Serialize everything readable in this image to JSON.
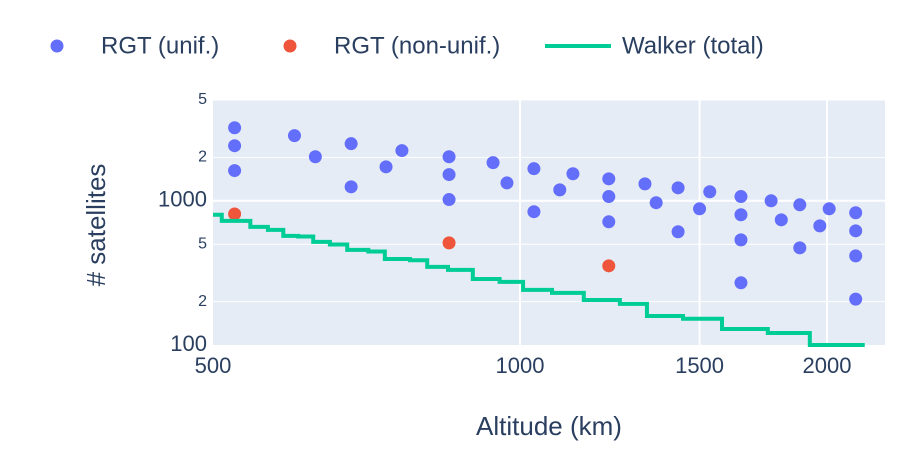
{
  "chart_data": {
    "type": "scatter",
    "xlabel": "Altitude (km)",
    "ylabel": "# satellites",
    "xscale": "log",
    "yscale": "log",
    "grid": true,
    "legend": "top",
    "xlim": [
      500,
      2280
    ],
    "ylim": [
      100,
      5000
    ],
    "xticks": [
      500,
      1000,
      1500,
      2000
    ],
    "yticks": [
      100,
      {
        "value": 200,
        "label": "2"
      },
      {
        "value": 500,
        "label": "5"
      },
      1000,
      {
        "value": 2000,
        "label": "2"
      },
      {
        "value": 5000,
        "label": "5"
      }
    ],
    "series": [
      {
        "name": "RGT (unif.)",
        "color": "#636efa",
        "mode": "markers",
        "x": [
          525,
          525,
          525,
          601,
          630,
          683,
          683,
          739,
          766,
          852,
          852,
          852,
          941,
          971,
          1032,
          1032,
          1094,
          1127,
          1222,
          1222,
          1222,
          1326,
          1360,
          1429,
          1429,
          1500,
          1535,
          1647,
          1647,
          1647,
          1647,
          1763,
          1804,
          1881,
          1881,
          1968,
          2010,
          2134,
          2134,
          2134,
          2134
        ],
        "values": [
          3210,
          2410,
          1620,
          2830,
          2020,
          2490,
          1250,
          1720,
          2230,
          2020,
          1520,
          1020,
          1840,
          1330,
          1670,
          840,
          1190,
          1540,
          1420,
          1070,
          715,
          1310,
          970,
          1230,
          610,
          880,
          1155,
          1070,
          800,
          536,
          270,
          1000,
          738,
          938,
          472,
          670,
          880,
          826,
          619,
          415,
          208
        ]
      },
      {
        "name": "RGT (non-unif.)",
        "color": "#ef553b",
        "mode": "markers",
        "x": [
          525,
          852,
          1222
        ],
        "values": [
          810,
          511,
          354
        ]
      },
      {
        "name": "Walker (total)",
        "color": "#00cc96",
        "mode": "lines",
        "line_shape": "hv",
        "x": [
          500,
          510,
          544,
          566,
          586,
          606,
          627,
          651,
          677,
          710,
          737,
          780,
          811,
          850,
          899,
          955,
          1007,
          1075,
          1155,
          1253,
          1332,
          1445,
          1578,
          1750,
          1924,
          2178
        ],
        "values": [
          800,
          726,
          660,
          629,
          571,
          566,
          519,
          498,
          457,
          445,
          395,
          387,
          348,
          332,
          287,
          274,
          241,
          230,
          205,
          193,
          159,
          152,
          129,
          121,
          100,
          100
        ]
      }
    ]
  }
}
